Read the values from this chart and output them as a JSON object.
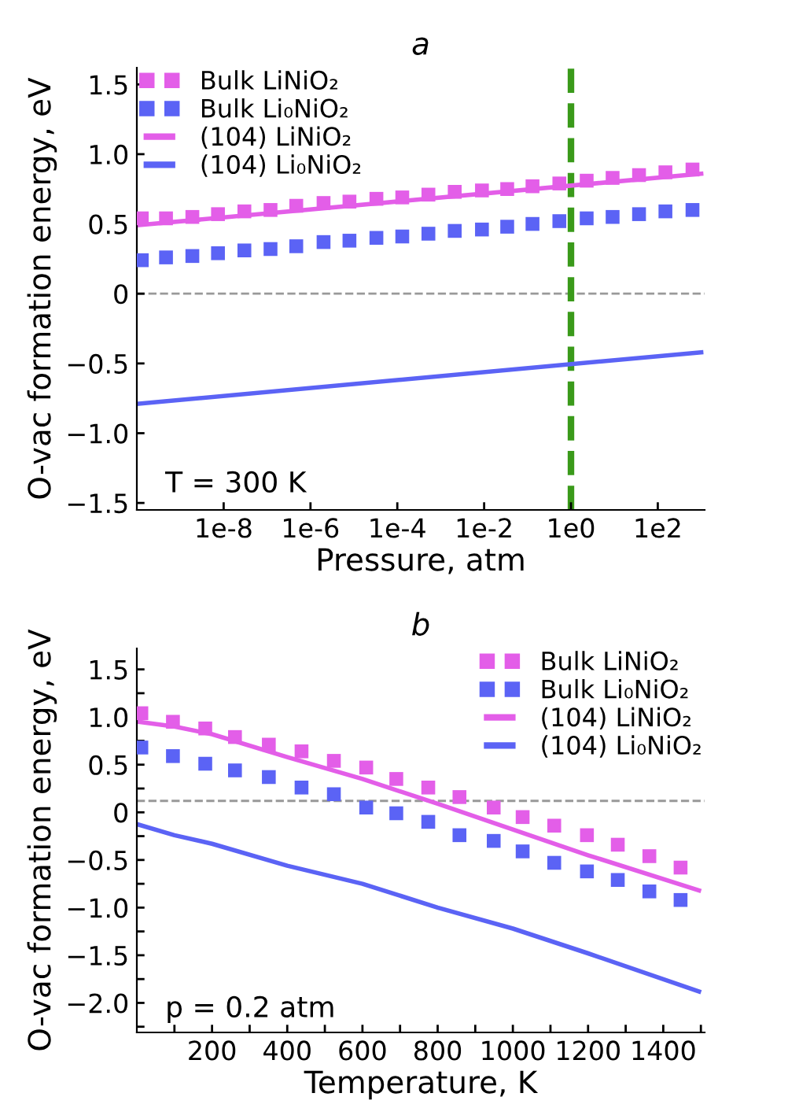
{
  "chart_data": [
    {
      "type": "scatter",
      "title": "a",
      "xlabel": "Pressure, atm",
      "ylabel": "O-vac formation energy, eV",
      "log": "x",
      "legend": "top left",
      "grid": false,
      "xlim": [
        1e-10,
        1200
      ],
      "xticks": [
        {
          "value": 1e-08,
          "label": "1e-8"
        },
        {
          "value": 1e-06,
          "label": "1e-6"
        },
        {
          "value": 0.0001,
          "label": "1e-4"
        },
        {
          "value": 0.01,
          "label": "1e-2"
        },
        {
          "value": 1,
          "label": "1e0"
        },
        {
          "value": 100,
          "label": "1e2"
        }
      ],
      "ylim": [
        -1.55,
        1.62
      ],
      "yticks": [
        {
          "value": -1.5,
          "label": "−1.5"
        },
        {
          "value": -1.0,
          "label": "−1.0"
        },
        {
          "value": -0.5,
          "label": "−0.5"
        },
        {
          "value": 0,
          "label": "0"
        },
        {
          "value": 0.5,
          "label": "0.5"
        },
        {
          "value": 1.0,
          "label": "1.0"
        },
        {
          "value": 1.5,
          "label": "1.5"
        }
      ],
      "x": [
        1.3e-10,
        4.7e-10,
        1.9e-09,
        7.4e-09,
        3e-08,
        1.2e-07,
        4.7e-07,
        2e-06,
        7.9e-06,
        3.3e-05,
        0.00013,
        0.00052,
        0.0021,
        0.0089,
        0.034,
        0.13,
        0.54,
        2.3,
        9.1,
        37,
        150,
        630
      ],
      "series": [
        {
          "name": "Bulk LiNiO₂",
          "marker": "square",
          "color": "#e35ee8",
          "values": [
            0.54,
            0.54,
            0.55,
            0.57,
            0.59,
            0.6,
            0.63,
            0.65,
            0.66,
            0.68,
            0.69,
            0.71,
            0.73,
            0.74,
            0.75,
            0.77,
            0.79,
            0.81,
            0.83,
            0.85,
            0.87,
            0.89
          ]
        },
        {
          "name": "Bulk Li₀NiO₂",
          "marker": "square",
          "color": "#5b63f5",
          "values": [
            0.24,
            0.26,
            0.27,
            0.29,
            0.31,
            0.32,
            0.34,
            0.37,
            0.38,
            0.4,
            0.41,
            0.43,
            0.45,
            0.46,
            0.48,
            0.5,
            0.52,
            0.54,
            0.55,
            0.57,
            0.59,
            0.6
          ]
        },
        {
          "name": "(104) LiNiO₂",
          "type": "line",
          "line_style": "solid",
          "color": "#e35ee8",
          "x": [
            1e-10,
            1000
          ],
          "values": [
            0.49,
            0.86
          ]
        },
        {
          "name": "(104) Li₀NiO₂",
          "type": "line",
          "line_style": "solid",
          "color": "#5b63f5",
          "x": [
            1e-10,
            1000
          ],
          "values": [
            -0.79,
            -0.42
          ]
        }
      ],
      "ref_lines": [
        {
          "axis": "y",
          "value": 0,
          "color": "#999999",
          "line_style": "dashed"
        },
        {
          "axis": "x",
          "value": 1,
          "color": "#3a9a1a",
          "line_style": "dashed"
        }
      ],
      "annotations": [
        "T = 300 K"
      ]
    },
    {
      "type": "scatter",
      "title": "b",
      "xlabel": "Temperature, K",
      "ylabel": "O-vac formation energy, eV",
      "legend": "top right",
      "grid": false,
      "xlim": [
        0,
        1510
      ],
      "xticks": [
        {
          "value": 100,
          "label": null
        },
        200,
        {
          "value": 300,
          "label": null
        },
        400,
        {
          "value": 500,
          "label": null
        },
        600,
        {
          "value": 700,
          "label": null
        },
        800,
        {
          "value": 900,
          "label": null
        },
        1000,
        {
          "value": 1100,
          "label": null
        },
        1200,
        {
          "value": 1300,
          "label": null
        },
        1400,
        {
          "value": 1500,
          "label": null
        }
      ],
      "ylim": [
        -2.31,
        1.72
      ],
      "yticks": [
        {
          "value": -2.25,
          "label": null
        },
        {
          "value": -2.0,
          "label": "−2.0"
        },
        {
          "value": -1.75,
          "label": null
        },
        {
          "value": -1.5,
          "label": "−1.5"
        },
        {
          "value": -1.25,
          "label": null
        },
        {
          "value": -1.0,
          "label": "−1.0"
        },
        {
          "value": -0.75,
          "label": null
        },
        {
          "value": -0.5,
          "label": "−0.5"
        },
        {
          "value": -0.25,
          "label": null
        },
        {
          "value": 0,
          "label": "0"
        },
        {
          "value": 0.25,
          "label": null
        },
        {
          "value": 0.5,
          "label": "0.5"
        },
        {
          "value": 0.75,
          "label": null
        },
        {
          "value": 1.0,
          "label": "1.0"
        },
        {
          "value": 1.25,
          "label": null
        },
        {
          "value": 1.5,
          "label": "1.5"
        }
      ],
      "x": [
        12,
        96,
        182,
        261,
        351,
        438,
        524,
        610,
        690,
        775,
        858,
        949,
        1026,
        1110,
        1197,
        1279,
        1363,
        1446
      ],
      "series": [
        {
          "name": "Bulk LiNiO₂",
          "marker": "square",
          "color": "#e35ee8",
          "values": [
            1.04,
            0.95,
            0.88,
            0.79,
            0.71,
            0.64,
            0.54,
            0.47,
            0.35,
            0.26,
            0.16,
            0.05,
            -0.05,
            -0.14,
            -0.24,
            -0.34,
            -0.46,
            -0.58
          ]
        },
        {
          "name": "Bulk Li₀NiO₂",
          "marker": "square",
          "color": "#5b63f5",
          "values": [
            0.68,
            0.59,
            0.51,
            0.44,
            0.37,
            0.26,
            0.19,
            0.05,
            -0.01,
            -0.1,
            -0.24,
            -0.3,
            -0.41,
            -0.53,
            -0.62,
            -0.71,
            -0.83,
            -0.92
          ]
        },
        {
          "name": "(104) LiNiO₂",
          "type": "line",
          "line_style": "solid",
          "color": "#e35ee8",
          "x": [
            5,
            100,
            200,
            400,
            600,
            800,
            1000,
            1200,
            1495
          ],
          "values": [
            0.95,
            0.9,
            0.82,
            0.58,
            0.35,
            0.09,
            -0.18,
            -0.45,
            -0.82
          ]
        },
        {
          "name": "(104) Li₀NiO₂",
          "type": "line",
          "line_style": "solid",
          "color": "#5b63f5",
          "x": [
            5,
            100,
            200,
            400,
            600,
            800,
            1000,
            1200,
            1495
          ],
          "values": [
            -0.13,
            -0.24,
            -0.33,
            -0.56,
            -0.75,
            -1.0,
            -1.22,
            -1.48,
            -1.88
          ]
        }
      ],
      "ref_lines": [
        {
          "axis": "y",
          "value": 0.12,
          "color": "#999999",
          "line_style": "dashed"
        }
      ],
      "annotations": [
        "p = 0.2 atm"
      ]
    }
  ]
}
